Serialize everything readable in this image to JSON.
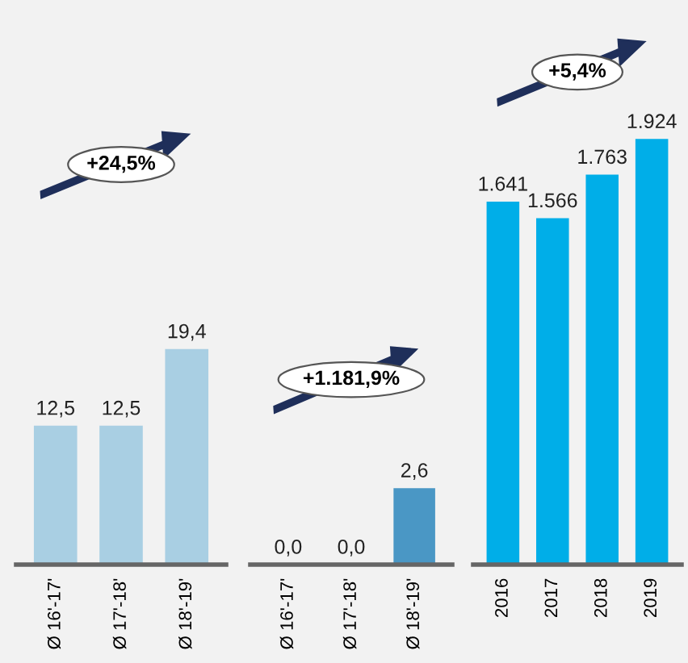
{
  "chart_data": [
    {
      "type": "bar",
      "categories": [
        "Ø 16'-17'",
        "Ø 17'-18'",
        "Ø 18'-19'"
      ],
      "values": [
        12.5,
        12.5,
        19.4
      ],
      "colors": [
        "#a9cfe3",
        "#a9cfe3",
        "#a9cfe3"
      ],
      "value_labels": [
        "12,5",
        "12,5",
        "19,4"
      ],
      "annotations": [
        "+24,5%"
      ]
    },
    {
      "type": "bar",
      "categories": [
        "Ø 16'-17'",
        "Ø 17'-18'",
        "Ø 18'-19'"
      ],
      "values": [
        0.0,
        0.0,
        2.6
      ],
      "colors": [
        "#4a97c5",
        "#4a97c5",
        "#4a97c5"
      ],
      "value_labels": [
        "0,0",
        "0,0",
        "2,6"
      ],
      "annotations": [
        "+1.181,9%"
      ]
    },
    {
      "type": "bar",
      "categories": [
        "2016",
        "2017",
        "2018",
        "2019"
      ],
      "values": [
        1641,
        1566,
        1763,
        1924
      ],
      "colors": [
        "#00aee8",
        "#00aee8",
        "#00aee8",
        "#00aee8"
      ],
      "value_labels": [
        "1.641",
        "1.566",
        "1.763",
        "1.924"
      ],
      "annotations": [
        "+5,4%"
      ]
    }
  ]
}
